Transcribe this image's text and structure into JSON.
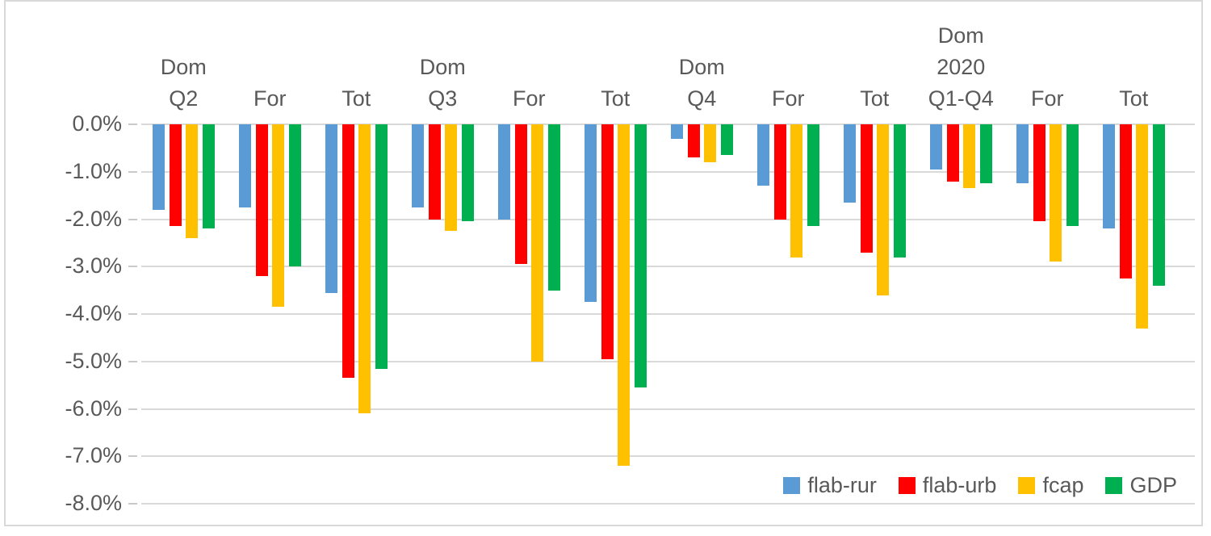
{
  "chart_data": {
    "type": "bar",
    "title": "",
    "categories": [
      "Dom\nQ2",
      "For",
      "Tot",
      "Dom\nQ3",
      "For",
      "Tot",
      "Dom\nQ4",
      "For",
      "Tot",
      "Dom\n2020\nQ1-Q4",
      "For",
      "Tot"
    ],
    "series": [
      {
        "name": "flab-rur",
        "color": "#5B9BD5",
        "values": [
          -1.8,
          -1.75,
          -3.55,
          -1.75,
          -2.0,
          -3.75,
          -0.3,
          -1.3,
          -1.65,
          -0.95,
          -1.25,
          -2.2
        ]
      },
      {
        "name": "flab-urb",
        "color": "#FF0000",
        "values": [
          -2.15,
          -3.2,
          -5.35,
          -2.0,
          -2.95,
          -4.95,
          -0.7,
          -2.0,
          -2.7,
          -1.2,
          -2.05,
          -3.25
        ]
      },
      {
        "name": "fcap",
        "color": "#FFC000",
        "values": [
          -2.4,
          -3.85,
          -6.1,
          -2.25,
          -5.0,
          -7.2,
          -0.8,
          -2.8,
          -3.6,
          -1.35,
          -2.9,
          -4.3
        ]
      },
      {
        "name": "GDP",
        "color": "#00B050",
        "values": [
          -2.2,
          -3.0,
          -5.15,
          -2.05,
          -3.5,
          -5.55,
          -0.65,
          -2.15,
          -2.8,
          -1.25,
          -2.15,
          -3.4
        ]
      }
    ],
    "y_tick_labels": [
      "0.0%",
      "-1.0%",
      "-2.0%",
      "-3.0%",
      "-4.0%",
      "-5.0%",
      "-6.0%",
      "-7.0%",
      "-8.0%"
    ],
    "ylim": [
      -8,
      0
    ],
    "y_step": 1,
    "unit": "%",
    "xlabel": "",
    "ylabel": "",
    "grid": true,
    "legend_position": "bottom-right",
    "colors": {
      "gridline": "#D9D9D9",
      "axis_text": "#595959",
      "background": "#FFFFFF",
      "frame_border": "#D9D9D9"
    }
  }
}
